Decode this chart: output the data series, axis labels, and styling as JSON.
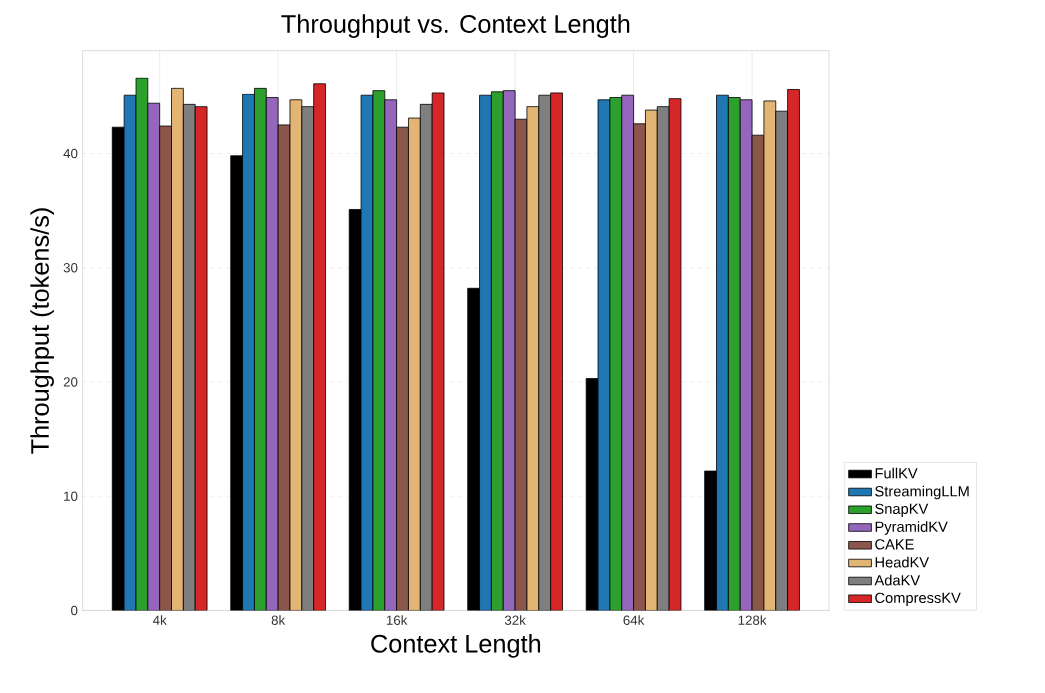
{
  "chart_data": {
    "type": "bar",
    "title": "Throughput vs. Context Length",
    "xlabel": "Context Length",
    "ylabel": "Throughput (tokens/s)",
    "categories": [
      "4k",
      "8k",
      "16k",
      "32k",
      "64k",
      "128k"
    ],
    "series": [
      {
        "name": "FullKV",
        "color": "#000000",
        "values": [
          42.3,
          39.8,
          35.1,
          28.2,
          20.3,
          12.2
        ]
      },
      {
        "name": "StreamingLLM",
        "color": "#1f77b4",
        "values": [
          45.1,
          45.2,
          45.1,
          45.1,
          44.7,
          45.1
        ]
      },
      {
        "name": "SnapKV",
        "color": "#2ca02c",
        "values": [
          46.6,
          45.7,
          45.5,
          45.4,
          44.9,
          44.9
        ]
      },
      {
        "name": "PyramidKV",
        "color": "#9467bd",
        "values": [
          44.4,
          44.9,
          44.7,
          45.5,
          45.1,
          44.7
        ]
      },
      {
        "name": "CAKE",
        "color": "#8c564b",
        "values": [
          42.4,
          42.5,
          42.3,
          43.0,
          42.6,
          41.6
        ]
      },
      {
        "name": "HeadKV",
        "color": "#e2b574",
        "values": [
          45.7,
          44.7,
          43.1,
          44.1,
          43.8,
          44.6
        ]
      },
      {
        "name": "AdaKV",
        "color": "#7f7f7f",
        "values": [
          44.3,
          44.1,
          44.3,
          45.1,
          44.1,
          43.7
        ]
      },
      {
        "name": "CompressKV",
        "color": "#d62728",
        "values": [
          44.1,
          46.1,
          45.3,
          45.3,
          44.8,
          45.6
        ]
      }
    ],
    "ylim": [
      0,
      49
    ],
    "yticks": [
      0,
      10,
      20,
      30,
      40
    ],
    "grid": true,
    "legend": "bottom right"
  }
}
